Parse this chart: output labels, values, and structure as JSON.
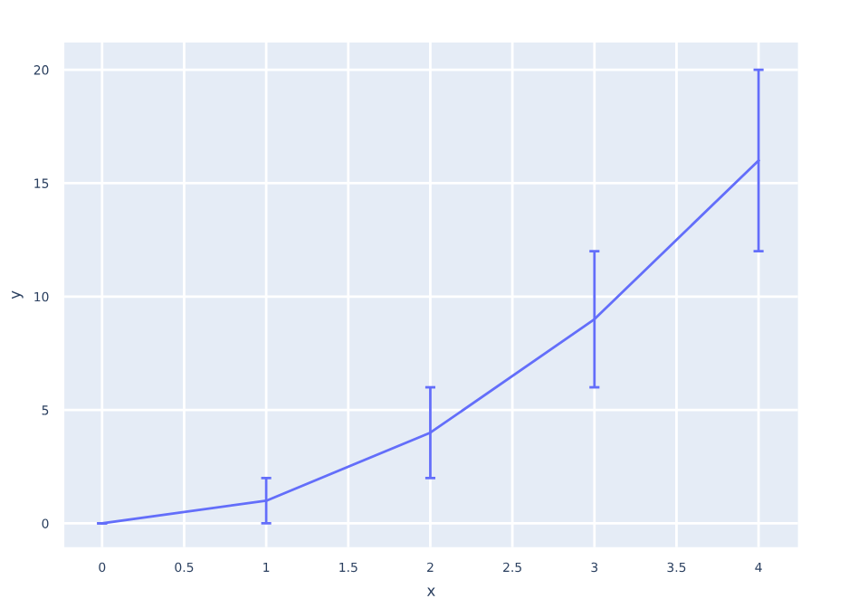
{
  "chart_data": {
    "type": "line",
    "xlabel": "x",
    "ylabel": "y",
    "x": [
      0,
      1,
      2,
      3,
      4
    ],
    "series": [
      {
        "color": "#636efa",
        "values": [
          0,
          1,
          4,
          9,
          16
        ],
        "errors": [
          0,
          1,
          2,
          3,
          4
        ]
      }
    ],
    "xlim": [
      -0.23,
      4.24
    ],
    "ylim": [
      -1.05,
      21.2
    ],
    "xticks": [
      0,
      0.5,
      1,
      1.5,
      2,
      2.5,
      3,
      3.5,
      4
    ],
    "yticks": [
      0,
      5,
      10,
      15,
      20
    ],
    "grid": true,
    "marker": "none",
    "line_style": "solid"
  }
}
